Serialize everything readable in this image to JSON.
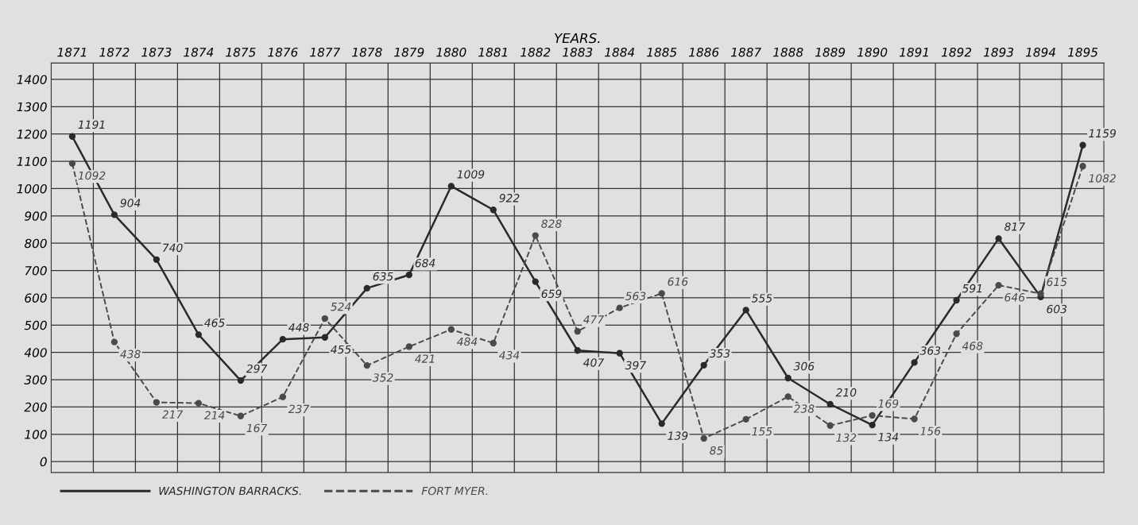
{
  "chart_data": {
    "type": "line",
    "xlabel": "YEARS.",
    "categories": [
      "1871",
      "1872",
      "1873",
      "1874",
      "1875",
      "1876",
      "1877",
      "1878",
      "1879",
      "1880",
      "1881",
      "1882",
      "1883",
      "1884",
      "1885",
      "1886",
      "1887",
      "1888",
      "1889",
      "1890",
      "1891",
      "1892",
      "1893",
      "1894",
      "1895"
    ],
    "series": [
      {
        "name": "WASHINGTON BARRACKS.",
        "color": "#2a2a2a",
        "line_style": "solid",
        "values": [
          1191,
          904,
          740,
          465,
          297,
          448,
          455,
          635,
          684,
          1009,
          922,
          659,
          407,
          397,
          139,
          353,
          555,
          306,
          210,
          134,
          363,
          591,
          817,
          603,
          1159
        ]
      },
      {
        "name": "FORT MYER.",
        "color": "#4a4a4a",
        "line_style": "dashed",
        "values": [
          1092,
          438,
          217,
          214,
          167,
          237,
          524,
          352,
          421,
          484,
          434,
          828,
          477,
          563,
          616,
          85,
          155,
          238,
          132,
          169,
          156,
          468,
          646,
          615,
          1082
        ]
      }
    ],
    "ylim": [
      -40,
      1460
    ],
    "yticks": [
      0,
      100,
      200,
      300,
      400,
      500,
      600,
      700,
      800,
      900,
      1000,
      1100,
      1200,
      1300,
      1400
    ],
    "grid": true,
    "legend": "bottom",
    "marker": "circle",
    "data_labels": true
  }
}
